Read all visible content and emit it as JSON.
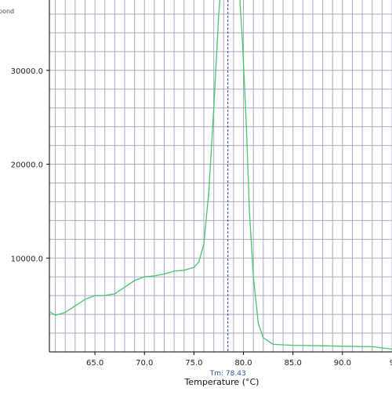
{
  "chart_data": {
    "type": "line",
    "title": "",
    "xlabel": "Temperature (°C)",
    "ylabel": "",
    "xlim": [
      60.4,
      95.0
    ],
    "ylim": [
      0,
      37500
    ],
    "x_ticks": [
      65.0,
      70.0,
      75.0,
      80.0,
      85.0,
      90.0
    ],
    "x_tick_labels": [
      "65.0",
      "70.0",
      "75.0",
      "80.0",
      "85.0",
      "90.0"
    ],
    "x_tick_partial": "9",
    "y_ticks": [
      10000,
      20000,
      30000
    ],
    "y_tick_labels": [
      "10000.0",
      "20000.0",
      "30000.0"
    ],
    "y_top_partial_label": "pond",
    "grid": true,
    "series": [
      {
        "color": "#46c46a",
        "points": [
          [
            60.4,
            4300
          ],
          [
            61.0,
            3900
          ],
          [
            62.0,
            4200
          ],
          [
            63.0,
            4900
          ],
          [
            64.0,
            5600
          ],
          [
            65.0,
            6000
          ],
          [
            66.0,
            6000
          ],
          [
            67.0,
            6200
          ],
          [
            68.0,
            6900
          ],
          [
            69.0,
            7600
          ],
          [
            70.0,
            8000
          ],
          [
            71.0,
            8100
          ],
          [
            72.0,
            8300
          ],
          [
            73.0,
            8600
          ],
          [
            74.0,
            8700
          ],
          [
            75.0,
            9000
          ],
          [
            75.5,
            9600
          ],
          [
            76.0,
            11500
          ],
          [
            76.5,
            17000
          ],
          [
            77.0,
            26000
          ],
          [
            77.5,
            36000
          ],
          [
            77.8,
            40000
          ],
          [
            79.5,
            40000
          ],
          [
            79.9,
            33000
          ],
          [
            80.3,
            24000
          ],
          [
            80.6,
            15000
          ],
          [
            81.0,
            8000
          ],
          [
            81.5,
            3000
          ],
          [
            82.0,
            1500
          ],
          [
            83.0,
            800
          ],
          [
            85.0,
            700
          ],
          [
            88.0,
            650
          ],
          [
            90.0,
            600
          ],
          [
            93.0,
            550
          ],
          [
            95.0,
            300
          ]
        ]
      }
    ],
    "markers": [
      {
        "x": 78.43,
        "label": "Tm: 78.43",
        "color": "#1c3f8f",
        "style": "dashed"
      }
    ]
  }
}
